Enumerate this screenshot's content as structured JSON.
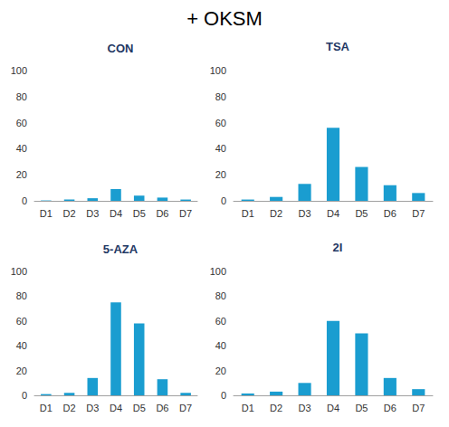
{
  "title": "+ OKSM",
  "chart_data": [
    {
      "type": "bar",
      "title": "CON",
      "categories": [
        "D1",
        "D2",
        "D3",
        "D4",
        "D5",
        "D6",
        "D7"
      ],
      "values": [
        0.3,
        1,
        2,
        9,
        4,
        2.5,
        1
      ],
      "color": "#1a9dd0",
      "ylim": [
        0,
        100
      ],
      "yticks": [
        0,
        20,
        40,
        60,
        80,
        100
      ],
      "grid": false
    },
    {
      "type": "bar",
      "title": "TSA",
      "categories": [
        "D1",
        "D2",
        "D3",
        "D4",
        "D5",
        "D6",
        "D7"
      ],
      "values": [
        1,
        3,
        13,
        56,
        26,
        12,
        6
      ],
      "color": "#1a9dd0",
      "ylim": [
        0,
        100
      ],
      "yticks": [
        0,
        20,
        40,
        60,
        80,
        100
      ],
      "grid": false
    },
    {
      "type": "bar",
      "title": "5-AZA",
      "categories": [
        "D1",
        "D2",
        "D3",
        "D4",
        "D5",
        "D6",
        "D7"
      ],
      "values": [
        1,
        2,
        14,
        75,
        58,
        13,
        2
      ],
      "color": "#1a9dd0",
      "ylim": [
        0,
        100
      ],
      "yticks": [
        0,
        20,
        40,
        60,
        80,
        100
      ],
      "grid": false
    },
    {
      "type": "bar",
      "title": "2I",
      "categories": [
        "D1",
        "D2",
        "D3",
        "D4",
        "D5",
        "D6",
        "D7"
      ],
      "values": [
        1.5,
        3,
        10,
        60,
        50,
        14,
        5
      ],
      "color": "#1a9dd0",
      "ylim": [
        0,
        100
      ],
      "yticks": [
        0,
        20,
        40,
        60,
        80,
        100
      ],
      "grid": false
    }
  ]
}
